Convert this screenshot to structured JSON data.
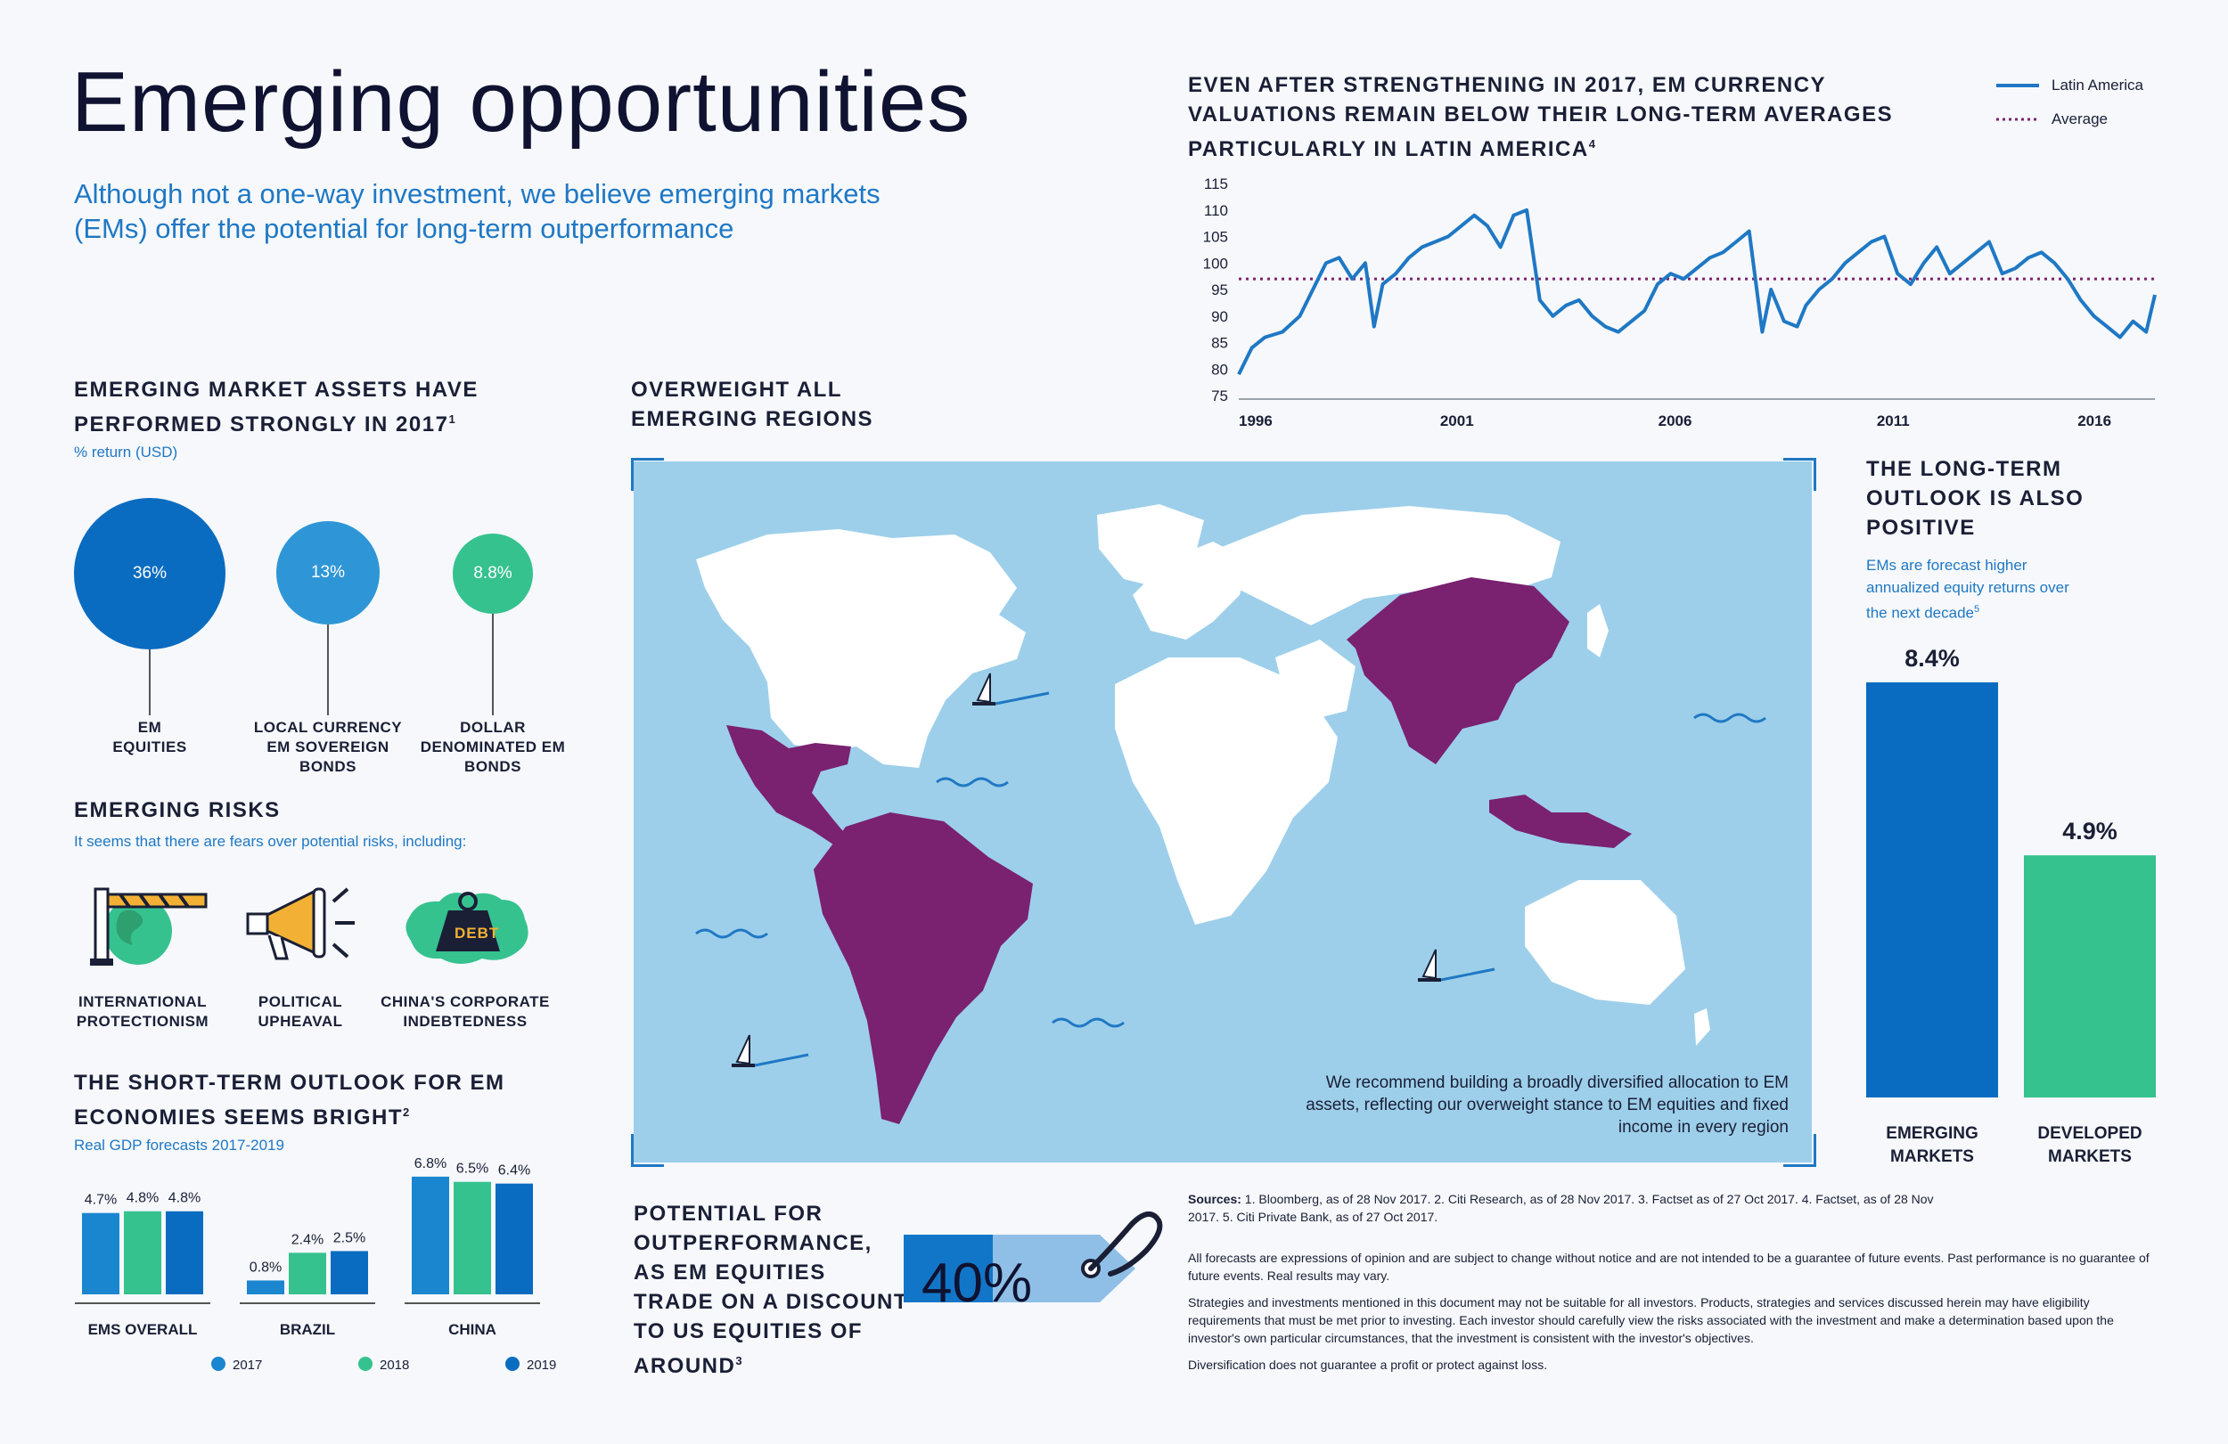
{
  "header": {
    "title": "Emerging opportunities",
    "subtitle": "Although not a one-way investment, we believe emerging markets (EMs) offer the potential for long-term outperformance"
  },
  "assets": {
    "heading_line1": "EMERGING MARKET ASSETS HAVE",
    "heading_line2": "PERFORMED STRONGLY IN 2017",
    "heading_sup": "1",
    "unit": "% return (USD)",
    "items": [
      {
        "value": "36%",
        "label_lines": [
          "EM",
          "EQUITIES"
        ],
        "color": "#0a6cc0"
      },
      {
        "value": "13%",
        "label_lines": [
          "LOCAL CURRENCY",
          "EM SOVEREIGN",
          "BONDS"
        ],
        "color": "#2e96d6"
      },
      {
        "value": "8.8%",
        "label_lines": [
          "DOLLAR",
          "DENOMINATED EM",
          "BONDS"
        ],
        "color": "#35c28f"
      }
    ]
  },
  "risks": {
    "heading": "EMERGING RISKS",
    "intro": "It seems that there are fears over potential risks, including:",
    "items": [
      {
        "label_lines": [
          "INTERNATIONAL",
          "PROTECTIONISM"
        ],
        "icon": "barrier-globe-icon"
      },
      {
        "label_lines": [
          "POLITICAL",
          "UPHEAVAL"
        ],
        "icon": "megaphone-icon"
      },
      {
        "label_lines": [
          "CHINA'S CORPORATE",
          "INDEBTEDNESS"
        ],
        "icon": "debt-weight-icon"
      }
    ],
    "debt_text": "DEBT"
  },
  "gdp": {
    "heading_line1": "THE SHORT-TERM OUTLOOK FOR EM",
    "heading_line2": "ECONOMIES SEEMS BRIGHT",
    "heading_sup": "2",
    "unit": "Real GDP forecasts 2017-2019"
  },
  "map_section": {
    "heading_line1": "OVERWEIGHT ALL",
    "heading_line2": "EMERGING REGIONS",
    "note": "We recommend building a broadly diversified allocation to EM assets, reflecting our overweight stance to EM equities and fixed income in every region"
  },
  "currency": {
    "title_lines": [
      "EVEN AFTER STRENGTHENING IN 2017, EM CURRENCY",
      "VALUATIONS REMAIN BELOW THEIR LONG-TERM AVERAGES",
      "PARTICULARLY IN LATIN AMERICA"
    ],
    "title_sup": "4",
    "legend": [
      {
        "label": "Latin America",
        "color": "#1f78c4"
      },
      {
        "label": "Average",
        "color": "#7b2470"
      }
    ]
  },
  "longterm": {
    "heading_lines": [
      "THE LONG-TERM",
      "OUTLOOK IS ALSO",
      "POSITIVE"
    ],
    "intro_lines": [
      "EMs are forecast higher",
      "annualized equity returns over",
      "the next decade"
    ],
    "intro_sup": "5"
  },
  "discount": {
    "heading_lines": [
      "POTENTIAL FOR",
      "OUTPERFORMANCE,",
      "AS EM EQUITIES",
      "TRADE ON A DISCOUNT",
      "TO US EQUITIES OF",
      "AROUND"
    ],
    "heading_sup": "3",
    "tag_value": "40%"
  },
  "footer": {
    "sources_label": "Sources:",
    "sources_line1": " 1. Bloomberg, as of 28 Nov 2017. 2. Citi Research, as of 28 Nov 2017. 3. Factset as of 27 Oct 2017. 4. Factset, as of 28 Nov",
    "sources_line2": "2017. 5. Citi Private Bank, as of 27 Oct 2017.",
    "disclaimer1": "All forecasts are expressions of opinion and are subject to change without notice and are not intended to be a guarantee of future events. Past performance is no guarantee of future events. Real results may vary.",
    "disclaimer2": "Strategies and investments mentioned in this document may not be suitable for all investors. Products, strategies and services discussed herein may have eligibility requirements that must be met prior to investing. Each investor should carefully view the risks associated with the investment and make a determination based upon the investor's own particular circumstances, that the investment is consistent with the investor's objectives.",
    "disclaimer3": "Diversification does not guarantee a profit or protect against loss."
  },
  "chart_data": [
    {
      "type": "line",
      "title": "EVEN AFTER STRENGTHENING IN 2017, EM CURRENCY VALUATIONS REMAIN BELOW THEIR LONG-TERM AVERAGES PARTICULARLY IN LATIN AMERICA",
      "ylim": [
        75,
        115
      ],
      "yticks": [
        75,
        80,
        85,
        90,
        95,
        100,
        105,
        110,
        115
      ],
      "xlim": [
        1996,
        2017
      ],
      "xticks": [
        1996,
        2001,
        2006,
        2011,
        2016
      ],
      "series": [
        {
          "name": "Latin America",
          "color": "#1f78c4",
          "x": [
            1996.0,
            1996.3,
            1996.6,
            1997.0,
            1997.4,
            1997.7,
            1998.0,
            1998.3,
            1998.6,
            1998.9,
            1999.1,
            1999.3,
            1999.6,
            1999.9,
            2000.2,
            2000.5,
            2000.8,
            2001.1,
            2001.4,
            2001.7,
            2002.0,
            2002.3,
            2002.6,
            2002.9,
            2003.2,
            2003.5,
            2003.8,
            2004.1,
            2004.4,
            2004.7,
            2005.0,
            2005.3,
            2005.6,
            2005.9,
            2006.2,
            2006.5,
            2006.8,
            2007.1,
            2007.4,
            2007.7,
            2008.0,
            2008.2,
            2008.5,
            2008.8,
            2009.0,
            2009.3,
            2009.6,
            2009.9,
            2010.2,
            2010.5,
            2010.8,
            2011.1,
            2011.4,
            2011.7,
            2012.0,
            2012.3,
            2012.6,
            2012.9,
            2013.2,
            2013.5,
            2013.8,
            2014.1,
            2014.4,
            2014.7,
            2015.0,
            2015.3,
            2015.6,
            2015.9,
            2016.2,
            2016.5,
            2016.8,
            2017.0
          ],
          "values": [
            79,
            84,
            86,
            87,
            90,
            95,
            100,
            101,
            97,
            100,
            88,
            96,
            98,
            101,
            103,
            104,
            105,
            107,
            109,
            107,
            103,
            109,
            110,
            93,
            90,
            92,
            93,
            90,
            88,
            87,
            89,
            91,
            96,
            98,
            97,
            99,
            101,
            102,
            104,
            106,
            87,
            95,
            89,
            88,
            92,
            95,
            97,
            100,
            102,
            104,
            105,
            98,
            96,
            100,
            103,
            98,
            100,
            102,
            104,
            98,
            99,
            101,
            102,
            100,
            97,
            93,
            90,
            88,
            86,
            89,
            87,
            94
          ]
        },
        {
          "name": "Average",
          "color": "#7b2470",
          "x": [
            1996,
            2017
          ],
          "values": [
            97,
            97
          ]
        }
      ]
    },
    {
      "type": "bar",
      "title": "THE SHORT-TERM OUTLOOK FOR EM ECONOMIES SEEMS BRIGHT",
      "categories": [
        "EMS OVERALL",
        "BRAZIL",
        "CHINA"
      ],
      "series": [
        {
          "name": "2017",
          "color": "#1a86cf",
          "values": [
            4.7,
            0.8,
            6.8
          ],
          "labels": [
            "4.7%",
            "0.8%",
            "6.8%"
          ]
        },
        {
          "name": "2018",
          "color": "#35c28f",
          "values": [
            4.8,
            2.4,
            6.5
          ],
          "labels": [
            "4.8%",
            "2.4%",
            "6.5%"
          ]
        },
        {
          "name": "2019",
          "color": "#0a6cc0",
          "values": [
            4.8,
            2.5,
            6.4
          ],
          "labels": [
            "4.8%",
            "2.5%",
            "6.4%"
          ]
        }
      ],
      "ylim": [
        0,
        7
      ]
    },
    {
      "type": "bar",
      "title": "THE LONG-TERM OUTLOOK IS ALSO POSITIVE",
      "categories": [
        "EMERGING MARKETS",
        "DEVELOPED MARKETS"
      ],
      "values": [
        8.4,
        4.9
      ],
      "labels": [
        "8.4%",
        "4.9%"
      ],
      "category_lines": [
        [
          "EMERGING",
          "MARKETS"
        ],
        [
          "DEVELOPED",
          "MARKETS"
        ]
      ],
      "colors": [
        "#0a6cc0",
        "#35c28f"
      ],
      "ylim": [
        0,
        8.4
      ]
    },
    {
      "type": "bar",
      "title": "EMERGING MARKET ASSETS HAVE PERFORMED STRONGLY IN 2017",
      "categories": [
        "EM EQUITIES",
        "LOCAL CURRENCY EM SOVEREIGN BONDS",
        "DOLLAR DENOMINATED EM BONDS"
      ],
      "values": [
        36,
        13,
        8.8
      ]
    }
  ]
}
